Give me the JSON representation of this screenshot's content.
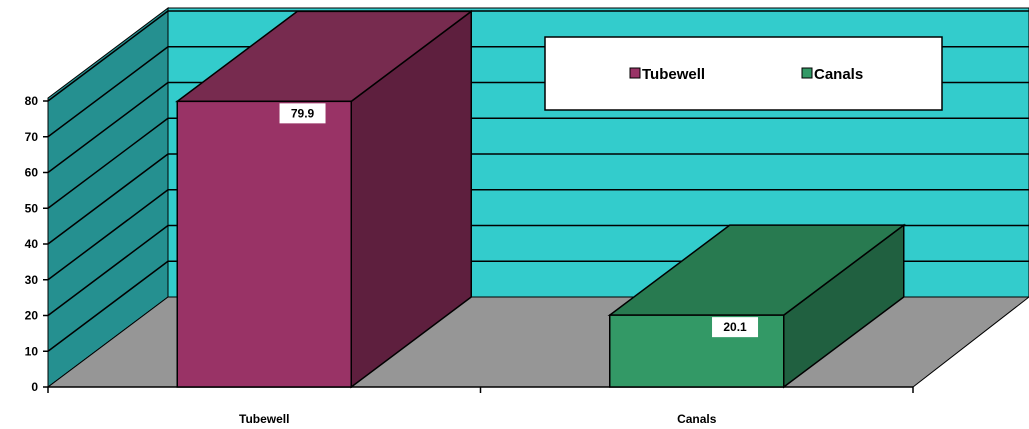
{
  "chart_data": {
    "type": "bar",
    "categories": [
      "Tubewell",
      "Canals"
    ],
    "values": [
      79.9,
      20.1
    ],
    "data_labels": [
      "79.9",
      "20.1"
    ],
    "ylim": [
      0,
      80
    ],
    "yticks": [
      0,
      10,
      20,
      30,
      40,
      50,
      60,
      70,
      80
    ],
    "grid": true,
    "legend": {
      "position": "top-right",
      "entries": [
        {
          "label": "Tubewell",
          "color": "#993366"
        },
        {
          "label": "Canals",
          "color": "#339966"
        }
      ]
    },
    "colors": {
      "wall": "#33CCCC",
      "side_wall": "#259090",
      "floor": "#969696",
      "tubewell_front": "#993366",
      "tubewell_side": "#5E1F3E",
      "tubewell_top": "#772B4F",
      "canals_front": "#339966",
      "canals_side": "#206040",
      "canals_top": "#287A50"
    }
  }
}
